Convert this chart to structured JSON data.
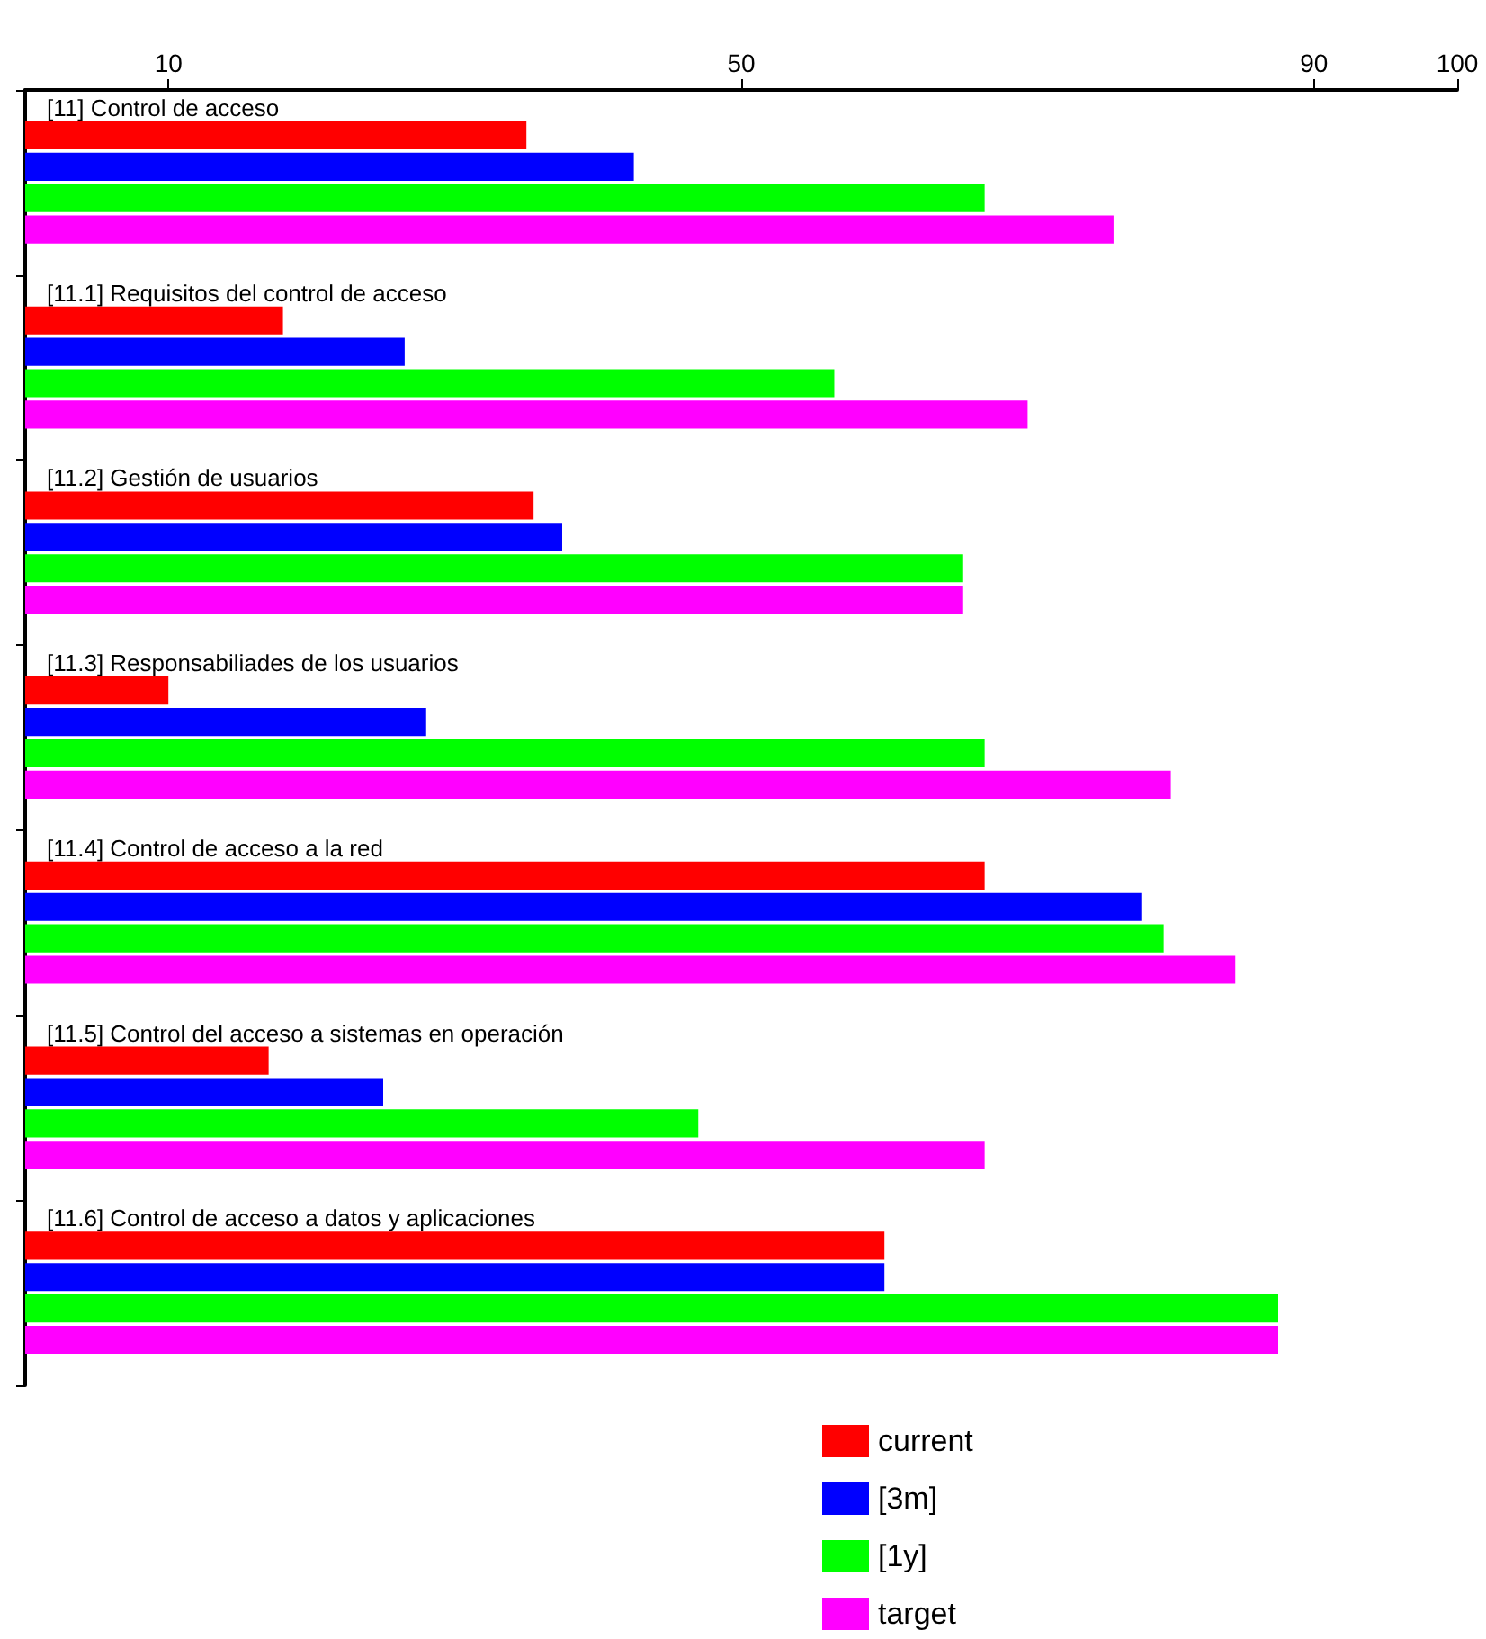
{
  "chart_data": {
    "type": "bar",
    "orientation": "horizontal",
    "categories": [
      "[11] Control de acceso",
      "[11.1] Requisitos del control de acceso",
      "[11.2] Gestión de usuarios",
      "[11.3] Responsabiliades de los usuarios",
      "[11.4] Control de acceso a la red",
      "[11.5] Control del acceso a sistemas en operación",
      "[11.6] Control de acceso a datos y aplicaciones"
    ],
    "series": [
      {
        "name": "current",
        "color": "#ff0000",
        "values": [
          35,
          18,
          35.5,
          10,
          67,
          17,
          60
        ]
      },
      {
        "name": "[3m]",
        "color": "#0000ff",
        "values": [
          42.5,
          26.5,
          37.5,
          28,
          78,
          25,
          60
        ]
      },
      {
        "name": "[1y]",
        "color": "#00ff00",
        "values": [
          67,
          56.5,
          65.5,
          67,
          79.5,
          47,
          87.5
        ]
      },
      {
        "name": "target",
        "color": "#ff00ff",
        "values": [
          76,
          70,
          65.5,
          80,
          84.5,
          67,
          87.5
        ]
      }
    ],
    "xlim": [
      0,
      100
    ],
    "xticks": [
      10,
      50,
      90,
      100
    ],
    "grid": false,
    "legend": "bottom"
  }
}
